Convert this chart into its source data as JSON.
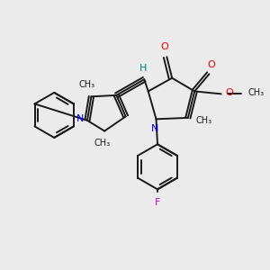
{
  "background_color": "#ebebeb",
  "bond_color": "#1a1a1a",
  "N_color": "#0000ee",
  "O_color": "#ee0000",
  "F_color": "#cc00cc",
  "H_color": "#008888",
  "figsize": [
    3.0,
    3.0
  ],
  "dpi": 100,
  "xlim": [
    0,
    10
  ],
  "ylim": [
    0,
    10
  ]
}
